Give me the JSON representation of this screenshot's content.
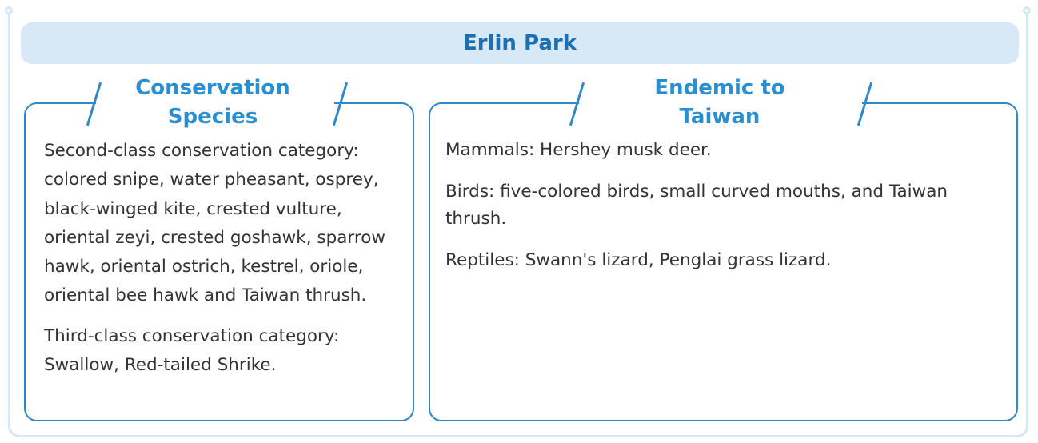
{
  "title": "Erlin Park",
  "left_panel": {
    "heading": "Conservation Species",
    "paragraphs": [
      "Second-class conservation category: colored snipe, water pheasant, osprey, black-winged kite, crested vulture, oriental zeyi, crested goshawk, sparrow hawk, oriental ostrich, kestrel, oriole, oriental bee hawk and Taiwan thrush.",
      "Third-class conservation category: Swallow, Red-tailed Shrike."
    ]
  },
  "right_panel": {
    "heading": "Endemic to Taiwan",
    "paragraphs": [
      "Mammals: Hershey musk deer.",
      "Birds: five-colored birds, small curved mouths, and Taiwan thrush.",
      "Reptiles: Swann's lizard, Penglai grass lizard."
    ]
  },
  "colors": {
    "accent": "#2a8fd0",
    "title": "#1d6fb0",
    "banner": "#d7e8f6",
    "border": "#2e89c9",
    "text": "#333333"
  }
}
